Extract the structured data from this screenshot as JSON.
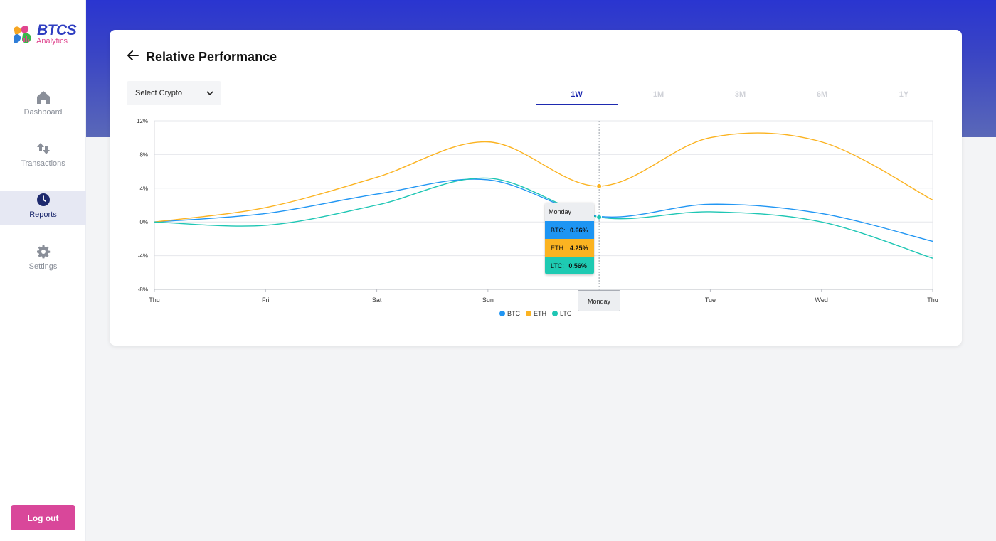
{
  "brand": {
    "name": "BTCS",
    "subtitle": "Analytics"
  },
  "sidebar": {
    "items": [
      {
        "label": "Dashboard",
        "icon": "home-icon"
      },
      {
        "label": "Transactions",
        "icon": "transfer-icon"
      },
      {
        "label": "Reports",
        "icon": "clock-icon",
        "active": true
      },
      {
        "label": "Settings",
        "icon": "gear-icon"
      }
    ],
    "logout_label": "Log out"
  },
  "page": {
    "title": "Relative Performance",
    "select_placeholder": "Select Crypto",
    "tabs": [
      {
        "label": "1W",
        "active": true
      },
      {
        "label": "1M"
      },
      {
        "label": "3M"
      },
      {
        "label": "6M"
      },
      {
        "label": "1Y"
      }
    ]
  },
  "tooltip": {
    "title": "Monday",
    "rows": [
      {
        "name": "BTC",
        "value": "0.66%"
      },
      {
        "name": "ETH",
        "value": "4.25%"
      },
      {
        "name": "LTC",
        "value": "0.56%"
      }
    ],
    "x_label": "Monday"
  },
  "chart_data": {
    "type": "line",
    "x": [
      "Thu",
      "Fri",
      "Sat",
      "Sun",
      "Monday",
      "Tue",
      "Wed",
      "Thu"
    ],
    "x_tick_labels": [
      "Thu",
      "Fri",
      "Sat",
      "Sun",
      "",
      "Tue",
      "Wed",
      "Thu"
    ],
    "yticks": [
      "12%",
      "8%",
      "4%",
      "0%",
      "-4%",
      "-8%"
    ],
    "ylim": [
      -8,
      12
    ],
    "grid": true,
    "legend": "bottom-center",
    "series": [
      {
        "name": "BTC",
        "color": "#2196f3",
        "values": [
          0,
          1.0,
          3.3,
          5.0,
          0.66,
          2.1,
          1.0,
          -2.3
        ]
      },
      {
        "name": "ETH",
        "color": "#fbb321",
        "values": [
          0,
          1.7,
          5.3,
          9.5,
          4.25,
          10.0,
          9.5,
          2.6
        ]
      },
      {
        "name": "LTC",
        "color": "#1ec6b4",
        "values": [
          0,
          -0.4,
          2.0,
          5.2,
          0.56,
          1.2,
          0.0,
          -4.3
        ]
      }
    ]
  }
}
